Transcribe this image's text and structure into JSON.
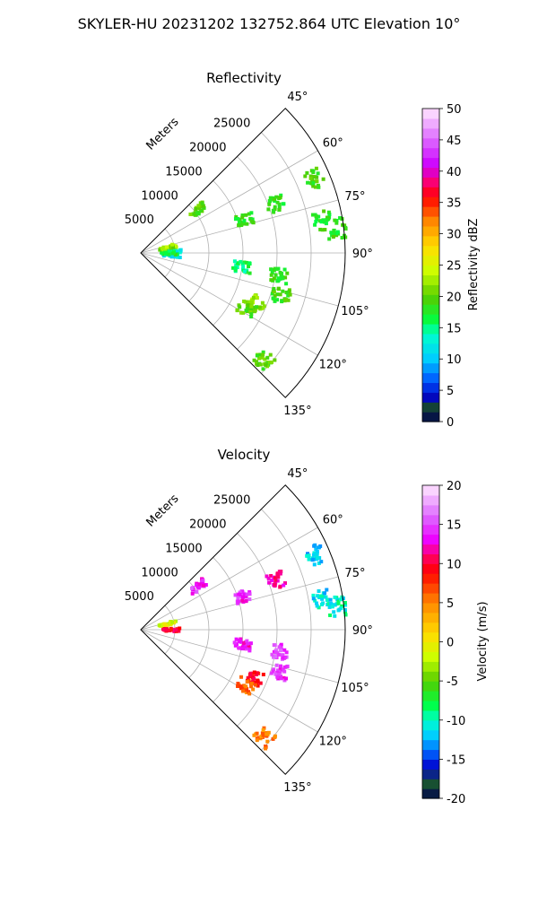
{
  "figure": {
    "suptitle": "SKYLER-HU  20231202  132752.864 UTC Elevation 10°"
  },
  "chart_data": [
    {
      "type": "heatmap",
      "projection": "polar-sector",
      "title": "Reflectivity",
      "range_label": "Meters",
      "azimuth_ticks": [
        "45°",
        "60°",
        "75°",
        "90°",
        "105°",
        "120°",
        "135°"
      ],
      "azimuth_range_deg": [
        45,
        135
      ],
      "range_ticks": [
        5000,
        10000,
        15000,
        20000,
        25000
      ],
      "range_max_m": 30000,
      "grid": true,
      "colorbar": {
        "label": "Reflectivity dBZ",
        "min": 0,
        "max": 50,
        "ticks": [
          0,
          5,
          10,
          15,
          20,
          25,
          30,
          35,
          40,
          45,
          50
        ],
        "stops": [
          {
            "v": 0,
            "c": "#00004d"
          },
          {
            "v": 3,
            "c": "#1a5530"
          },
          {
            "v": 4,
            "c": "#0000cc"
          },
          {
            "v": 7,
            "c": "#0066ff"
          },
          {
            "v": 10,
            "c": "#00ccff"
          },
          {
            "v": 14,
            "c": "#00ffcc"
          },
          {
            "v": 16,
            "c": "#00ff44"
          },
          {
            "v": 20,
            "c": "#55cc00"
          },
          {
            "v": 24,
            "c": "#ccff00"
          },
          {
            "v": 28,
            "c": "#ffdd00"
          },
          {
            "v": 32,
            "c": "#ff8800"
          },
          {
            "v": 36,
            "c": "#ff0000"
          },
          {
            "v": 38,
            "c": "#ff0066"
          },
          {
            "v": 41,
            "c": "#cc00ff"
          },
          {
            "v": 45,
            "c": "#dd66ff"
          },
          {
            "v": 50,
            "c": "#ffe8ff"
          }
        ]
      },
      "echoes": [
        {
          "az": 87,
          "r": 4600,
          "value": 12
        },
        {
          "az": 94,
          "r": 4500,
          "value": 11
        },
        {
          "az": 90,
          "r": 4300,
          "value": 17
        },
        {
          "az": 98,
          "r": 15000,
          "value": 16
        },
        {
          "az": 99,
          "r": 20500,
          "value": 18
        },
        {
          "az": 107,
          "r": 21500,
          "value": 19
        },
        {
          "az": 113,
          "r": 18500,
          "value": 22
        },
        {
          "az": 118,
          "r": 17500,
          "value": 20
        },
        {
          "az": 131,
          "r": 24000,
          "value": 20
        },
        {
          "az": 80,
          "r": 27000,
          "value": 18
        },
        {
          "az": 67,
          "r": 27800,
          "value": 19
        },
        {
          "az": 72,
          "r": 16000,
          "value": 18
        },
        {
          "az": 70,
          "r": 21000,
          "value": 18
        },
        {
          "az": 53,
          "r": 10500,
          "value": 20
        },
        {
          "az": 78,
          "r": 4000,
          "value": 22
        },
        {
          "az": 83,
          "r": 29000,
          "value": 18
        }
      ]
    },
    {
      "type": "heatmap",
      "projection": "polar-sector",
      "title": "Velocity",
      "range_label": "Meters",
      "azimuth_ticks": [
        "45°",
        "60°",
        "75°",
        "90°",
        "105°",
        "120°",
        "135°"
      ],
      "azimuth_range_deg": [
        45,
        135
      ],
      "range_ticks": [
        5000,
        10000,
        15000,
        20000,
        25000
      ],
      "range_max_m": 30000,
      "grid": true,
      "colorbar": {
        "label": "Velocity (m/s)",
        "min": -20,
        "max": 20,
        "ticks": [
          -20,
          -15,
          -10,
          -5,
          0,
          5,
          10,
          15,
          20
        ],
        "stops": [
          {
            "v": -20,
            "c": "#00004d"
          },
          {
            "v": -18,
            "c": "#1a5530"
          },
          {
            "v": -16,
            "c": "#0000cc"
          },
          {
            "v": -14,
            "c": "#0066ff"
          },
          {
            "v": -12,
            "c": "#00ccff"
          },
          {
            "v": -10,
            "c": "#00ffcc"
          },
          {
            "v": -8,
            "c": "#00ff44"
          },
          {
            "v": -5,
            "c": "#55cc00"
          },
          {
            "v": -2,
            "c": "#ccff00"
          },
          {
            "v": 1,
            "c": "#ffdd00"
          },
          {
            "v": 5,
            "c": "#ff8800"
          },
          {
            "v": 9,
            "c": "#ff0000"
          },
          {
            "v": 11,
            "c": "#ff0066"
          },
          {
            "v": 13,
            "c": "#ee00ff"
          },
          {
            "v": 16,
            "c": "#dd66ff"
          },
          {
            "v": 20,
            "c": "#ffe8ff"
          }
        ]
      },
      "echoes": [
        {
          "az": 90,
          "r": 4400,
          "value": 10
        },
        {
          "az": 98,
          "r": 15000,
          "value": 13
        },
        {
          "az": 99,
          "r": 20500,
          "value": 15
        },
        {
          "az": 107,
          "r": 21500,
          "value": 14
        },
        {
          "az": 113,
          "r": 18500,
          "value": 9
        },
        {
          "az": 118,
          "r": 17500,
          "value": 6
        },
        {
          "az": 131,
          "r": 24000,
          "value": 5
        },
        {
          "az": 80,
          "r": 27000,
          "value": -11
        },
        {
          "az": 67,
          "r": 27800,
          "value": -12
        },
        {
          "az": 72,
          "r": 16000,
          "value": 14
        },
        {
          "az": 70,
          "r": 21000,
          "value": 12
        },
        {
          "az": 53,
          "r": 10500,
          "value": 14
        },
        {
          "az": 78,
          "r": 4000,
          "value": -1
        },
        {
          "az": 83,
          "r": 29000,
          "value": -10
        }
      ]
    }
  ]
}
